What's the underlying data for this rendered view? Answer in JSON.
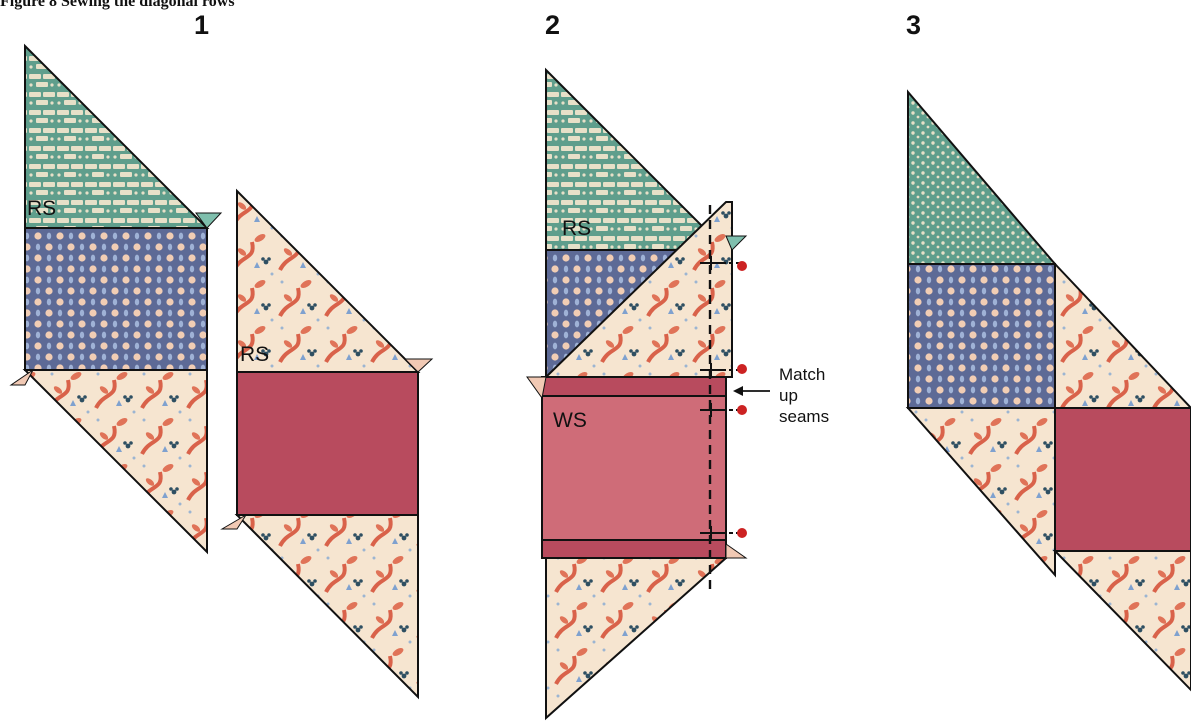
{
  "header_fragment": "Figure 8 Sewing the diagonal rows",
  "steps": {
    "s1": "1",
    "s2": "2",
    "s3": "3"
  },
  "labels": {
    "rs_1a": "RS",
    "rs_1b": "RS",
    "rs_2": "RS",
    "ws_2": "WS"
  },
  "callout": {
    "line1": "Match",
    "line2": "up",
    "line3": "seams"
  },
  "colors": {
    "green_fabric": "#5f9e8c",
    "blue_fabric": "#5d6a96",
    "floral_cream": "#f6e5d0",
    "red_solid": "#b84b5e",
    "red_ws": "#cf6c78",
    "seam_marker": "#cc2222"
  }
}
